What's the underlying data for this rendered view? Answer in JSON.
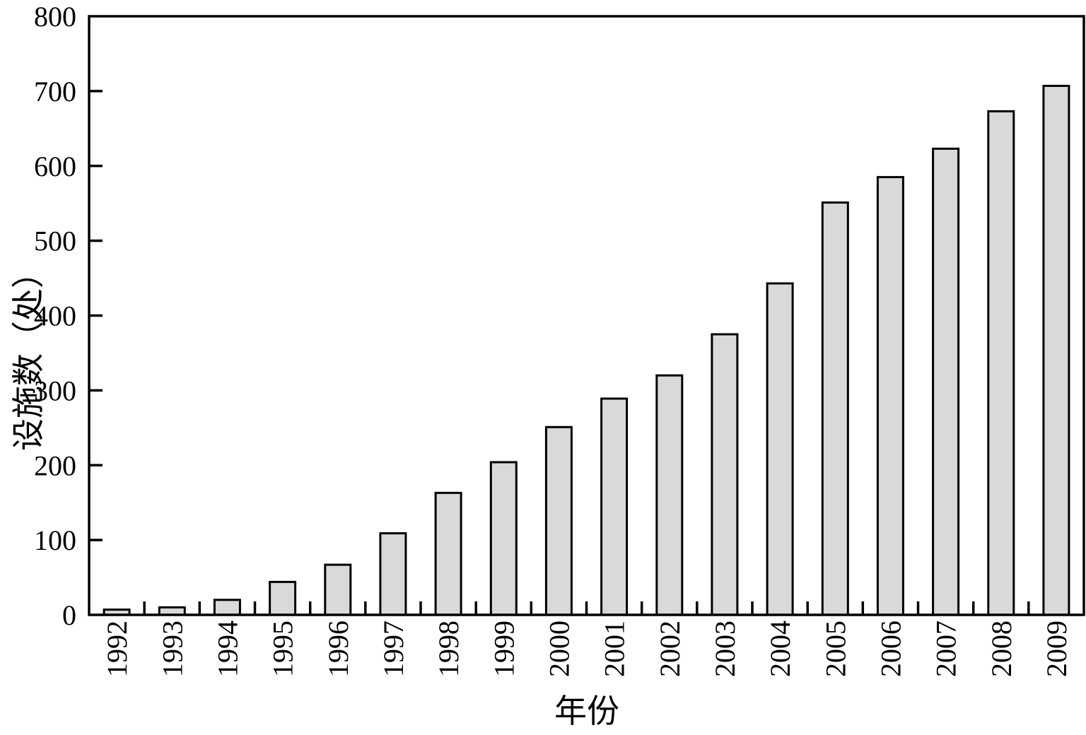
{
  "figure": {
    "background": "#ffffff",
    "axis_color": "#000000",
    "text_color": "#000000"
  },
  "chart_data": {
    "type": "bar",
    "title": "",
    "xlabel": "年份",
    "ylabel": "设施数（处）",
    "categories": [
      "1992",
      "1993",
      "1994",
      "1995",
      "1996",
      "1997",
      "1998",
      "1999",
      "2000",
      "2001",
      "2002",
      "2003",
      "2004",
      "2005",
      "2006",
      "2007",
      "2008",
      "2009"
    ],
    "values": [
      7,
      10,
      20,
      44,
      67,
      109,
      163,
      204,
      251,
      289,
      320,
      375,
      443,
      551,
      585,
      623,
      673,
      707
    ],
    "ylim": [
      0,
      800
    ],
    "ytick_step": 100,
    "ytick_labels": [
      "0",
      "100",
      "200",
      "300",
      "400",
      "500",
      "600",
      "700",
      "800"
    ],
    "grid": false,
    "legend": "none",
    "bar_fill": "#d9d9d9",
    "bar_stroke": "#000000",
    "x_tick_style": "between-categories",
    "tick_direction": "in",
    "x_tick_label_rotation": -90
  }
}
